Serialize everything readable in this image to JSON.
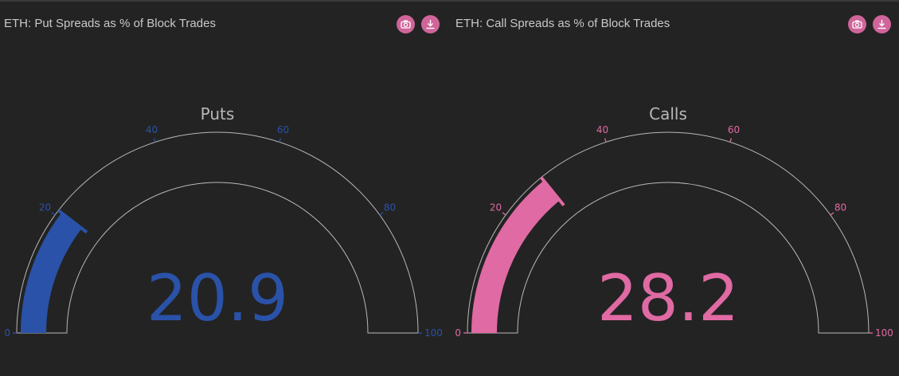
{
  "panels": [
    {
      "title": "ETH: Put Spreads as % of Block Trades",
      "camera_icon": "camera-icon",
      "download_icon": "download-icon"
    },
    {
      "title": "ETH: Call Spreads as % of Block Trades",
      "camera_icon": "camera-icon",
      "download_icon": "download-icon"
    }
  ],
  "colors": {
    "put": "#2a52a8",
    "call": "#e06aa3",
    "button": "#d0659a",
    "outline": "#b8b8b8"
  },
  "chart_data": [
    {
      "type": "gauge",
      "title": "Puts",
      "value": 20.9,
      "value_label": "20.9",
      "range": [
        0,
        100
      ],
      "ticks": [
        0,
        20,
        40,
        60,
        80,
        100
      ],
      "tick_labels": [
        "0",
        "20",
        "40",
        "60",
        "80",
        "100"
      ],
      "color": "#2a52a8"
    },
    {
      "type": "gauge",
      "title": "Calls",
      "value": 28.2,
      "value_label": "28.2",
      "range": [
        0,
        100
      ],
      "ticks": [
        0,
        20,
        40,
        60,
        80,
        100
      ],
      "tick_labels": [
        "0",
        "20",
        "40",
        "60",
        "80",
        "100"
      ],
      "color": "#e06aa3"
    }
  ]
}
